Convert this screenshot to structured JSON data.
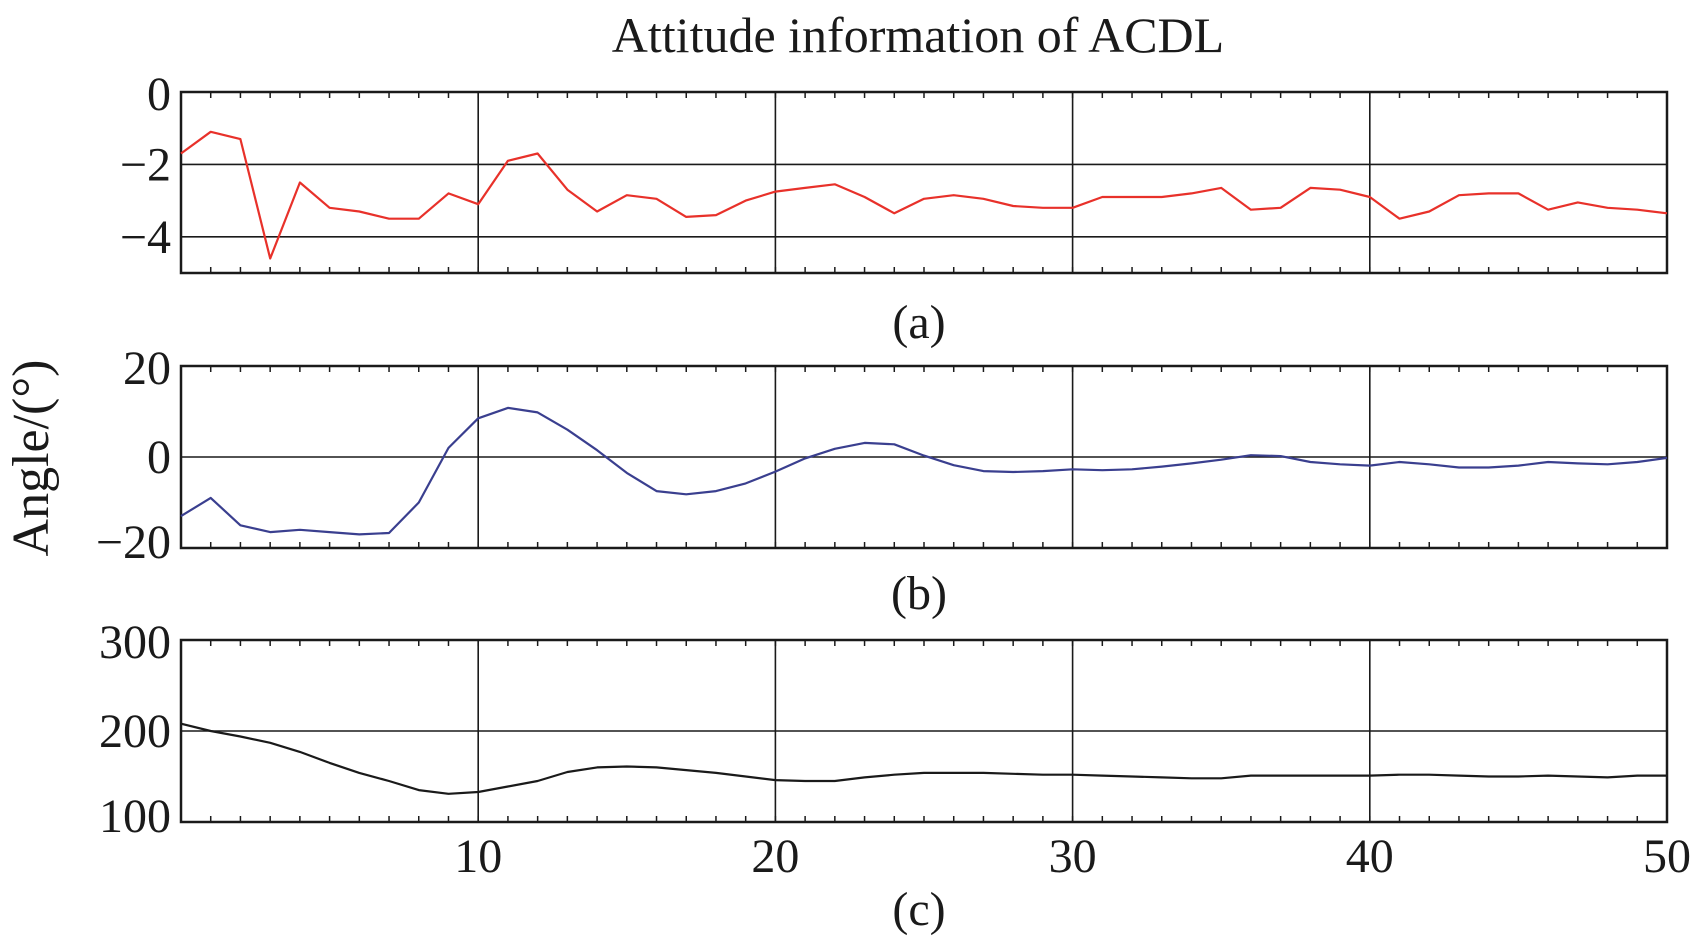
{
  "title": "Attitude information of ACDL",
  "ylabel": "Angle/(°)",
  "chart_data": [
    {
      "type": "line",
      "caption": "(a)",
      "title": "",
      "xlabel": "",
      "ylabel": "Angle/(°)",
      "xlim": [
        0,
        50
      ],
      "ylim": [
        -5,
        0
      ],
      "yticks": [
        0,
        -2,
        -4
      ],
      "ytick_labels": [
        "0",
        "−2",
        "−4"
      ],
      "xticks": [
        10,
        20,
        30,
        40,
        50
      ],
      "grid": true,
      "color": "#e8312a",
      "x": [
        0,
        1,
        2,
        3,
        4,
        5,
        6,
        7,
        8,
        9,
        10,
        11,
        12,
        13,
        14,
        15,
        16,
        17,
        18,
        19,
        20,
        21,
        22,
        23,
        24,
        25,
        26,
        27,
        28,
        29,
        30,
        31,
        32,
        33,
        34,
        35,
        36,
        37,
        38,
        39,
        40,
        41,
        42,
        43,
        44,
        45,
        46,
        47,
        48,
        49,
        50
      ],
      "values": [
        -1.7,
        -1.1,
        -1.3,
        -4.6,
        -2.5,
        -3.2,
        -3.3,
        -3.5,
        -3.5,
        -2.8,
        -3.1,
        -1.9,
        -1.7,
        -2.7,
        -3.3,
        -2.85,
        -2.95,
        -3.45,
        -3.4,
        -3.0,
        -2.75,
        -2.65,
        -2.55,
        -2.9,
        -3.35,
        -2.95,
        -2.85,
        -2.95,
        -3.15,
        -3.2,
        -3.2,
        -2.9,
        -2.9,
        -2.9,
        -2.8,
        -2.65,
        -3.25,
        -3.2,
        -2.65,
        -2.7,
        -2.9,
        -3.5,
        -3.3,
        -2.85,
        -2.8,
        -2.8,
        -3.25,
        -3.05,
        -3.2,
        -3.25,
        -3.35
      ]
    },
    {
      "type": "line",
      "caption": "(b)",
      "title": "",
      "xlabel": "",
      "ylabel": "Angle/(°)",
      "xlim": [
        0,
        50
      ],
      "ylim": [
        -20,
        20
      ],
      "yticks": [
        20,
        0,
        -20
      ],
      "ytick_labels": [
        "20",
        "0",
        "−20"
      ],
      "xticks": [
        10,
        20,
        30,
        40,
        50
      ],
      "grid": true,
      "color": "#3a3f8f",
      "x": [
        0,
        1,
        2,
        3,
        4,
        5,
        6,
        7,
        8,
        9,
        10,
        11,
        12,
        13,
        14,
        15,
        16,
        17,
        18,
        19,
        20,
        21,
        22,
        23,
        24,
        25,
        26,
        27,
        28,
        29,
        30,
        31,
        32,
        33,
        34,
        35,
        36,
        37,
        38,
        39,
        40,
        41,
        42,
        43,
        44,
        45,
        46,
        47,
        48,
        49,
        50
      ],
      "values": [
        -13,
        -9,
        -15,
        -16.5,
        -16,
        -16.5,
        -17,
        -16.7,
        -10,
        2,
        8.5,
        10.8,
        9.8,
        6,
        1.5,
        -3.5,
        -7.5,
        -8.2,
        -7.5,
        -5.8,
        -3.2,
        -0.3,
        1.8,
        3.1,
        2.8,
        0.3,
        -1.8,
        -3.1,
        -3.3,
        -3.1,
        -2.7,
        -2.9,
        -2.7,
        -2.1,
        -1.4,
        -0.6,
        0.4,
        0.2,
        -1.1,
        -1.6,
        -1.9,
        -1.1,
        -1.6,
        -2.3,
        -2.3,
        -1.9,
        -1.1,
        -1.4,
        -1.6,
        -1.1,
        -0.2
      ]
    },
    {
      "type": "line",
      "caption": "(c)",
      "title": "",
      "xlabel": "",
      "ylabel": "Angle/(°)",
      "xlim": [
        0,
        50
      ],
      "ylim": [
        100,
        300
      ],
      "yticks": [
        300,
        200,
        100
      ],
      "ytick_labels": [
        "300",
        "200",
        "100"
      ],
      "xticks": [
        10,
        20,
        30,
        40,
        50
      ],
      "xtick_labels": [
        "10",
        "20",
        "30",
        "40",
        "50"
      ],
      "grid": true,
      "color": "#1a1a1a",
      "x": [
        0,
        1,
        2,
        3,
        4,
        5,
        6,
        7,
        8,
        9,
        10,
        11,
        12,
        13,
        14,
        15,
        16,
        17,
        18,
        19,
        20,
        21,
        22,
        23,
        24,
        25,
        26,
        27,
        28,
        29,
        30,
        31,
        32,
        33,
        34,
        35,
        36,
        37,
        38,
        39,
        40,
        41,
        42,
        43,
        44,
        45,
        46,
        47,
        48,
        49,
        50
      ],
      "values": [
        208,
        200,
        194,
        187,
        177,
        165,
        154,
        145,
        135,
        131,
        133,
        139,
        145,
        155,
        160,
        161,
        160,
        157,
        154,
        150,
        146,
        145,
        145,
        149,
        152,
        154,
        154,
        154,
        153,
        152,
        152,
        151,
        150,
        149,
        148,
        148,
        151,
        151,
        151,
        151,
        151,
        152,
        152,
        151,
        150,
        150,
        151,
        150,
        149,
        151,
        151
      ]
    }
  ]
}
